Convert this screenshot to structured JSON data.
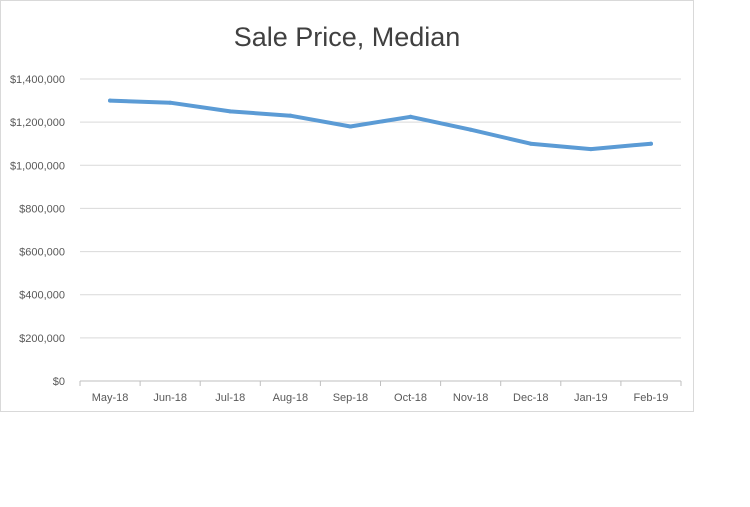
{
  "chart_data": {
    "type": "line",
    "title": "Sale Price, Median",
    "xlabel": "",
    "ylabel": "",
    "categories": [
      "May-18",
      "Jun-18",
      "Jul-18",
      "Aug-18",
      "Sep-18",
      "Oct-18",
      "Nov-18",
      "Dec-18",
      "Jan-19",
      "Feb-19"
    ],
    "series": [
      {
        "values": [
          1300000,
          1290000,
          1250000,
          1230000,
          1180000,
          1225000,
          1165000,
          1100000,
          1075000,
          1100000
        ],
        "color": "#5b9bd5"
      }
    ],
    "ylim": [
      0,
      1400000
    ],
    "y_ticks": [
      0,
      200000,
      400000,
      600000,
      800000,
      1000000,
      1200000,
      1400000
    ],
    "y_tick_labels": [
      "$0",
      "$200,000",
      "$400,000",
      "$600,000",
      "$800,000",
      "$1,000,000",
      "$1,200,000",
      "$1,400,000"
    ],
    "grid": true,
    "legend": "none"
  }
}
